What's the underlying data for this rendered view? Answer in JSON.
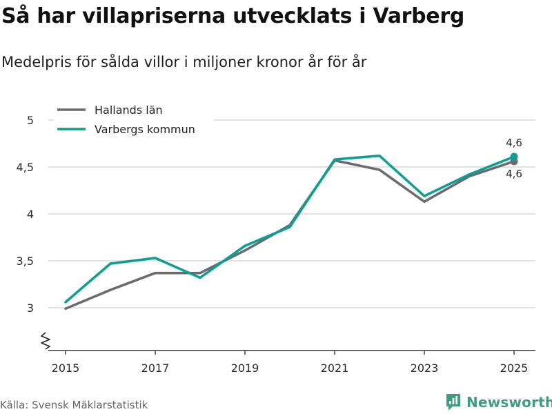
{
  "title": "Så har villapriserna utvecklats i Varberg",
  "subtitle": "Medelpris för sålda villor i miljoner kronor år för år",
  "source": "Källa: Svensk Mäklarstatistik",
  "brand": "Newsworthy",
  "colors": {
    "halland": "#6b6a6f",
    "varberg": "#0f9e94",
    "grid": "#d9d9d9",
    "axis": "#333333",
    "brand": "#3e9c83"
  },
  "chart_data": {
    "type": "line",
    "title": "Så har villapriserna utvecklats i Varberg",
    "subtitle": "Medelpris för sålda villor i miljoner kronor år för år",
    "xlabel": "",
    "ylabel": "",
    "x": [
      2015,
      2016,
      2017,
      2018,
      2019,
      2020,
      2021,
      2022,
      2023,
      2024,
      2025
    ],
    "x_tick_values": [
      2015,
      2017,
      2019,
      2021,
      2023,
      2025
    ],
    "x_tick_labels": [
      "2015",
      "2017",
      "2019",
      "2021",
      "2023",
      "2025"
    ],
    "y_tick_values": [
      3,
      3.5,
      4,
      4.5,
      5
    ],
    "y_tick_labels": [
      "3",
      "3,5",
      "4",
      "4,5",
      "5"
    ],
    "ylim": [
      2.55,
      5.05
    ],
    "xlim": [
      2014.6,
      2025.5
    ],
    "y_axis_break": true,
    "grid": true,
    "legend_position": "top-left",
    "series": [
      {
        "name": "Hallands län",
        "color_key": "halland",
        "values": [
          2.99,
          3.19,
          3.37,
          3.37,
          3.61,
          3.88,
          4.57,
          4.47,
          4.13,
          4.4,
          4.56
        ],
        "end_label": "4,6"
      },
      {
        "name": "Varbergs kommun",
        "color_key": "varberg",
        "values": [
          3.06,
          3.47,
          3.53,
          3.32,
          3.66,
          3.86,
          4.58,
          4.62,
          4.19,
          4.42,
          4.61
        ],
        "end_label": "4,6"
      }
    ]
  }
}
